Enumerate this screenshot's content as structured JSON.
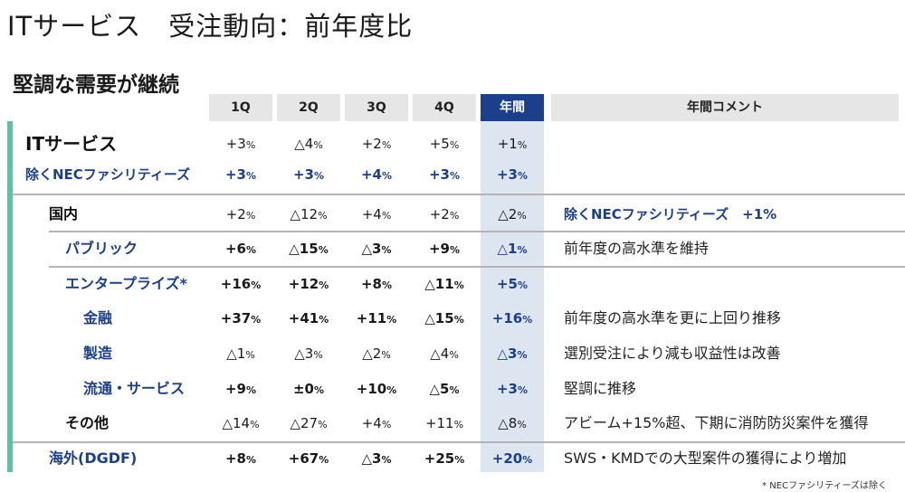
{
  "title": "ITサービス　受注動向：前年度比",
  "subtitle": "堅調な需要が継続",
  "headers": [
    "1Q",
    "2Q",
    "3Q",
    "4Q",
    "年間",
    "年間コメント"
  ],
  "rows": [
    {
      "label": "ITサービス",
      "values": [
        "+3",
        "△4",
        "+2",
        "+5",
        "+1"
      ],
      "comment": ""
    },
    {
      "label": "除くNECファシリティーズ",
      "values": [
        "+3",
        "+3",
        "+4",
        "+3",
        "+3"
      ],
      "comment": ""
    },
    {
      "label": "国内",
      "values": [
        "+2",
        "△12",
        "+4",
        "+2",
        "△2"
      ],
      "comment": "除くNECファシリティーズ　+1%"
    },
    {
      "label": "パブリック",
      "values": [
        "+6",
        "△15",
        "△3",
        "+9",
        "△1"
      ],
      "comment": "前年度の高水準を維持"
    },
    {
      "label": "エンタープライズ*",
      "values": [
        "+16",
        "+12",
        "+8",
        "△11",
        "+5"
      ],
      "comment": ""
    },
    {
      "label": "金融",
      "values": [
        "+37",
        "+41",
        "+11",
        "△15",
        "+16"
      ],
      "comment": "前年度の高水準を更に上回り推移"
    },
    {
      "label": "製造",
      "values": [
        "△1",
        "△3",
        "△2",
        "△4",
        "△3"
      ],
      "comment": "選別受注により減も収益性は改善"
    },
    {
      "label": "流通・サービス",
      "values": [
        "+9",
        "±0",
        "+10",
        "△5",
        "+3"
      ],
      "comment": "堅調に推移"
    },
    {
      "label": "その他",
      "values": [
        "△14",
        "△27",
        "+4",
        "+11",
        "△8"
      ],
      "comment": "アビーム+15%超、下期に消防防災案件を獲得"
    },
    {
      "label": "海外(DGDF)",
      "values": [
        "+8",
        "+67",
        "△3",
        "+25",
        "+20"
      ],
      "comment": "SWS・KMDでの大型案件の獲得により増加"
    }
  ],
  "footnote": "* NECファシリティーズは除く",
  "colors": {
    "accent_bar": "#5ec2a2",
    "annual_header": "#1c3f8c",
    "annual_column": "#dde5f0",
    "header_bg": "#e6e6e6",
    "label_blue": "#1c3f8c"
  }
}
